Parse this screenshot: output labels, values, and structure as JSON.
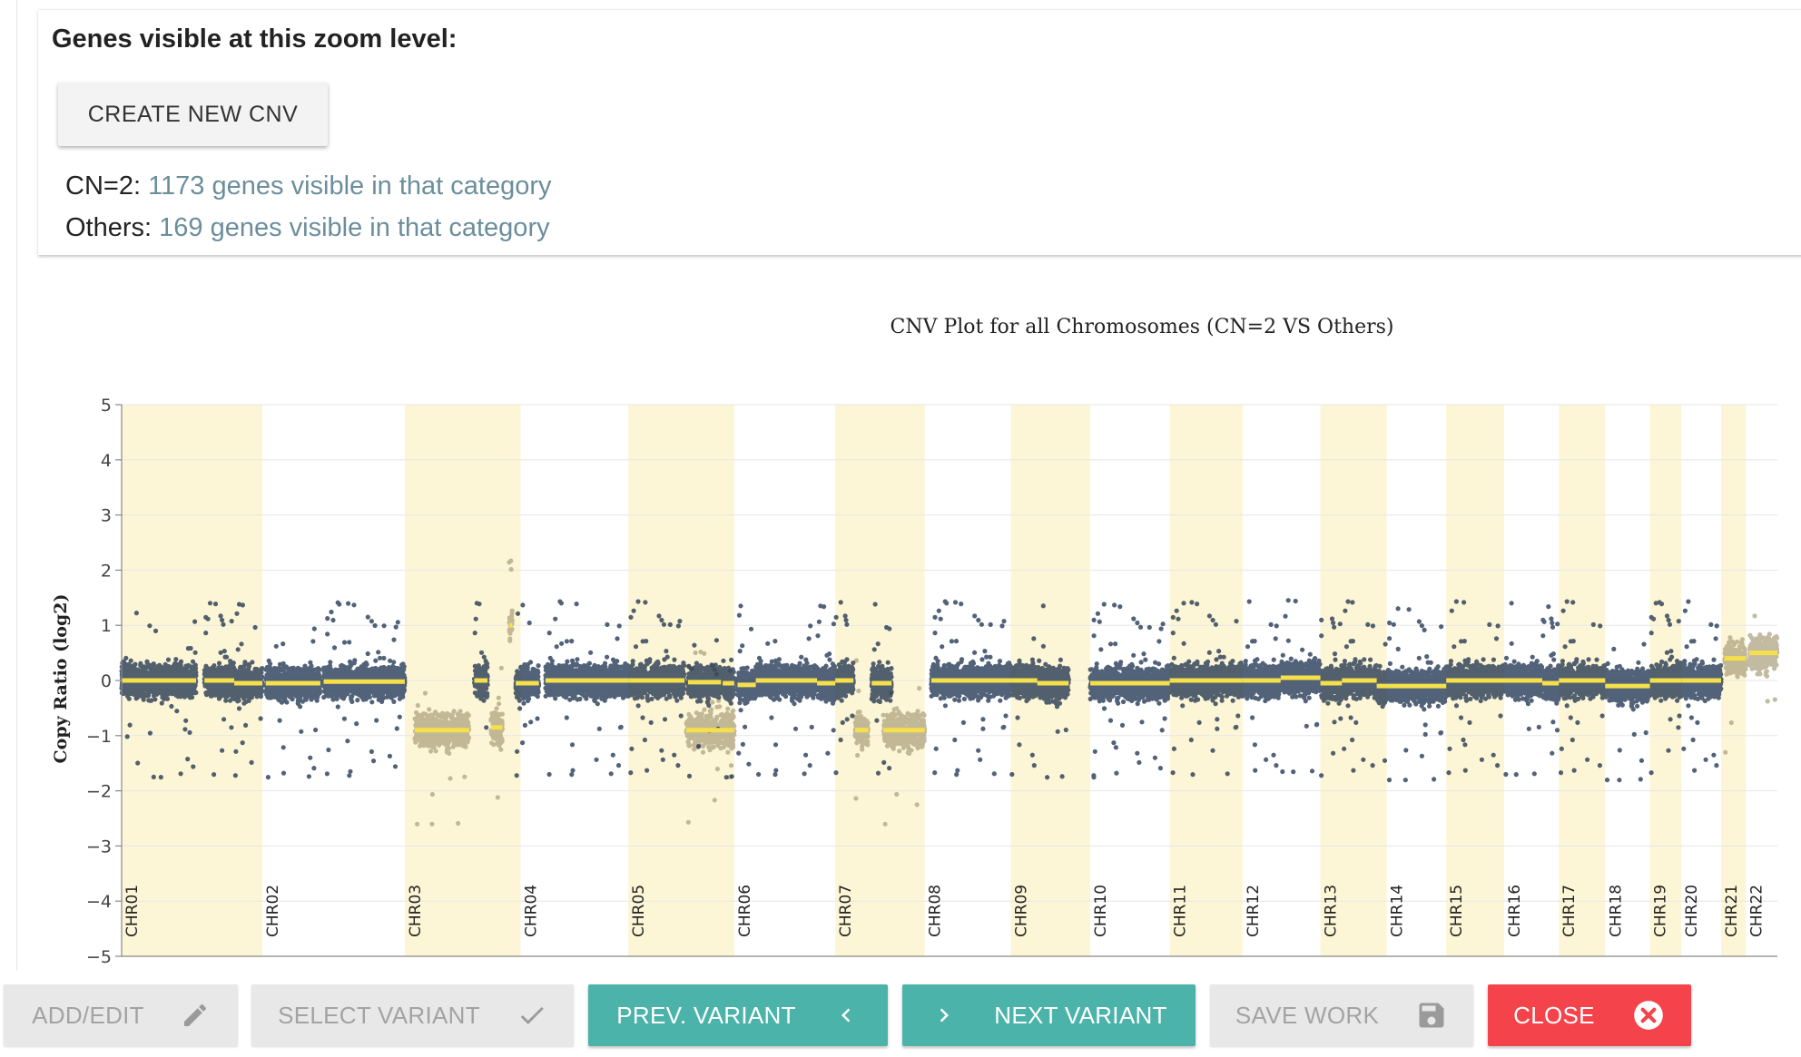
{
  "panel": {
    "title": "Genes visible at this zoom level:",
    "create_button": "CREATE NEW CNV",
    "categories": [
      {
        "label": "CN=2: ",
        "count": "1173 genes visible in that category"
      },
      {
        "label": "Others: ",
        "count": "169 genes visible in that category"
      }
    ]
  },
  "footer": {
    "add_edit": "ADD/EDIT",
    "select_variant": "SELECT VARIANT",
    "prev_variant": "PREV. VARIANT",
    "next_variant": "NEXT VARIANT",
    "save_work": "SAVE WORK",
    "close": "CLOSE"
  },
  "colors": {
    "cn2_points": "#0f2545",
    "other_points": "#a89e7a",
    "segment": "#f5e04b",
    "band": "#fdf6d6",
    "teal": "#4bb3a9",
    "red": "#f4434a"
  },
  "chart_data": {
    "type": "scatter",
    "title": "CNV Plot for all Chromosomes (CN=2 VS Others)",
    "xlabel": "",
    "ylabel": "Copy Ratio (log2)",
    "ylim": [
      -5,
      5
    ],
    "yticks": [
      5,
      4,
      3,
      2,
      1,
      0,
      -1,
      -2,
      -3,
      -4,
      -5
    ],
    "grid": true,
    "series": [
      {
        "name": "CN=2"
      },
      {
        "name": "Others"
      }
    ],
    "chromosomes": [
      {
        "label": "CHR01",
        "start": 0.0,
        "end": 0.085,
        "band": true
      },
      {
        "label": "CHR02",
        "start": 0.085,
        "end": 0.171,
        "band": false
      },
      {
        "label": "CHR03",
        "start": 0.171,
        "end": 0.241,
        "band": true
      },
      {
        "label": "CHR04",
        "start": 0.241,
        "end": 0.306,
        "band": false
      },
      {
        "label": "CHR05",
        "start": 0.306,
        "end": 0.37,
        "band": true
      },
      {
        "label": "CHR06",
        "start": 0.37,
        "end": 0.431,
        "band": false
      },
      {
        "label": "CHR07",
        "start": 0.431,
        "end": 0.485,
        "band": true
      },
      {
        "label": "CHR08",
        "start": 0.485,
        "end": 0.537,
        "band": false
      },
      {
        "label": "CHR09",
        "start": 0.537,
        "end": 0.585,
        "band": true
      },
      {
        "label": "CHR10",
        "start": 0.585,
        "end": 0.633,
        "band": false
      },
      {
        "label": "CHR11",
        "start": 0.633,
        "end": 0.677,
        "band": true
      },
      {
        "label": "CHR12",
        "start": 0.677,
        "end": 0.724,
        "band": false
      },
      {
        "label": "CHR13",
        "start": 0.724,
        "end": 0.764,
        "band": true
      },
      {
        "label": "CHR14",
        "start": 0.764,
        "end": 0.8,
        "band": false
      },
      {
        "label": "CHR15",
        "start": 0.8,
        "end": 0.835,
        "band": true
      },
      {
        "label": "CHR16",
        "start": 0.835,
        "end": 0.868,
        "band": false
      },
      {
        "label": "CHR17",
        "start": 0.868,
        "end": 0.896,
        "band": true
      },
      {
        "label": "CHR18",
        "start": 0.896,
        "end": 0.923,
        "band": false
      },
      {
        "label": "CHR19",
        "start": 0.923,
        "end": 0.942,
        "band": true
      },
      {
        "label": "CHR20",
        "start": 0.942,
        "end": 0.966,
        "band": false
      },
      {
        "label": "CHR21",
        "start": 0.966,
        "end": 0.981,
        "band": true
      },
      {
        "label": "CHR22",
        "start": 0.981,
        "end": 1.0,
        "band": false
      }
    ],
    "segments": [
      {
        "start": 0.0,
        "end": 0.045,
        "value": 0.0,
        "cn": 2
      },
      {
        "start": 0.05,
        "end": 0.068,
        "value": 0.0,
        "cn": 2
      },
      {
        "start": 0.068,
        "end": 0.085,
        "value": -0.05,
        "cn": 2
      },
      {
        "start": 0.087,
        "end": 0.12,
        "value": -0.05,
        "cn": 2
      },
      {
        "start": 0.122,
        "end": 0.171,
        "value": -0.02,
        "cn": 2
      },
      {
        "start": 0.177,
        "end": 0.21,
        "value": -0.9,
        "cn": 1
      },
      {
        "start": 0.213,
        "end": 0.221,
        "value": 0.0,
        "cn": 2
      },
      {
        "start": 0.223,
        "end": 0.23,
        "value": -0.85,
        "cn": 1
      },
      {
        "start": 0.234,
        "end": 0.236,
        "value": 1.0,
        "cn": 3
      },
      {
        "start": 0.238,
        "end": 0.252,
        "value": -0.05,
        "cn": 2
      },
      {
        "start": 0.256,
        "end": 0.306,
        "value": 0.0,
        "cn": 2
      },
      {
        "start": 0.306,
        "end": 0.34,
        "value": 0.0,
        "cn": 2
      },
      {
        "start": 0.342,
        "end": 0.362,
        "value": -0.03,
        "cn": 2
      },
      {
        "start": 0.363,
        "end": 0.37,
        "value": -0.05,
        "cn": 2
      },
      {
        "start": 0.341,
        "end": 0.37,
        "value": -0.9,
        "cn": 1
      },
      {
        "start": 0.372,
        "end": 0.383,
        "value": -0.08,
        "cn": 2
      },
      {
        "start": 0.383,
        "end": 0.42,
        "value": 0.0,
        "cn": 2
      },
      {
        "start": 0.42,
        "end": 0.431,
        "value": -0.05,
        "cn": 2
      },
      {
        "start": 0.431,
        "end": 0.442,
        "value": 0.0,
        "cn": 2
      },
      {
        "start": 0.443,
        "end": 0.451,
        "value": -0.9,
        "cn": 1
      },
      {
        "start": 0.453,
        "end": 0.465,
        "value": -0.05,
        "cn": 2
      },
      {
        "start": 0.46,
        "end": 0.485,
        "value": -0.9,
        "cn": 1
      },
      {
        "start": 0.489,
        "end": 0.537,
        "value": 0.0,
        "cn": 2
      },
      {
        "start": 0.537,
        "end": 0.553,
        "value": 0.0,
        "cn": 2
      },
      {
        "start": 0.553,
        "end": 0.572,
        "value": -0.05,
        "cn": 2
      },
      {
        "start": 0.585,
        "end": 0.633,
        "value": -0.05,
        "cn": 2
      },
      {
        "start": 0.633,
        "end": 0.677,
        "value": 0.0,
        "cn": 2
      },
      {
        "start": 0.677,
        "end": 0.7,
        "value": 0.0,
        "cn": 2
      },
      {
        "start": 0.7,
        "end": 0.724,
        "value": 0.05,
        "cn": 2
      },
      {
        "start": 0.724,
        "end": 0.737,
        "value": -0.05,
        "cn": 2
      },
      {
        "start": 0.737,
        "end": 0.758,
        "value": 0.0,
        "cn": 2
      },
      {
        "start": 0.758,
        "end": 0.764,
        "value": -0.1,
        "cn": 2
      },
      {
        "start": 0.764,
        "end": 0.8,
        "value": -0.1,
        "cn": 2
      },
      {
        "start": 0.8,
        "end": 0.835,
        "value": 0.0,
        "cn": 2
      },
      {
        "start": 0.835,
        "end": 0.858,
        "value": 0.0,
        "cn": 2
      },
      {
        "start": 0.858,
        "end": 0.868,
        "value": -0.05,
        "cn": 2
      },
      {
        "start": 0.868,
        "end": 0.896,
        "value": 0.0,
        "cn": 2
      },
      {
        "start": 0.896,
        "end": 0.923,
        "value": -0.1,
        "cn": 2
      },
      {
        "start": 0.923,
        "end": 0.942,
        "value": 0.0,
        "cn": 2
      },
      {
        "start": 0.942,
        "end": 0.966,
        "value": 0.0,
        "cn": 2
      },
      {
        "start": 0.968,
        "end": 0.981,
        "value": 0.4,
        "cn": 3
      },
      {
        "start": 0.983,
        "end": 1.0,
        "value": 0.5,
        "cn": 3
      }
    ]
  }
}
